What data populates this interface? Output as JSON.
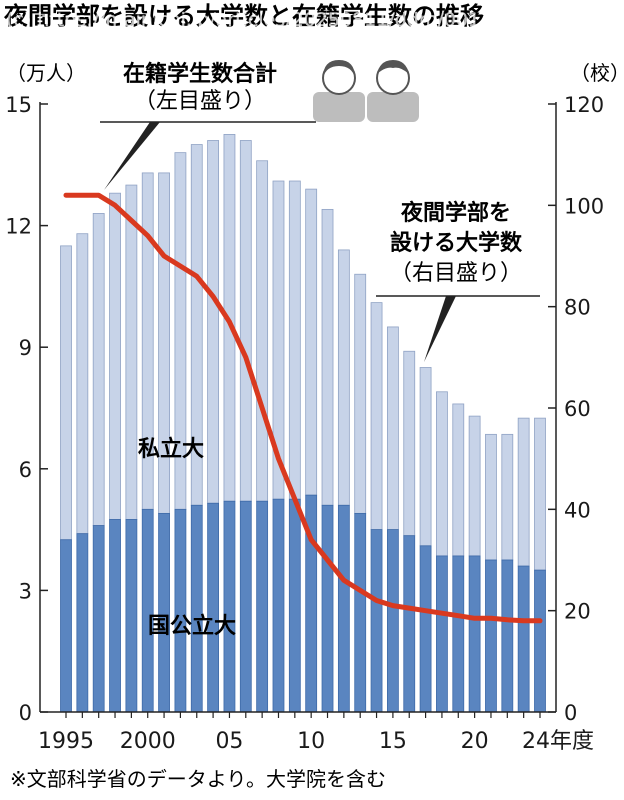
{
  "header": {
    "title": "夜間学部を設ける大学数と在籍学生数の推移",
    "watermark": "(c) https://mainichi.jp/articles/20250811/ddm/001/"
  },
  "footnote": "※文部科学省のデータより。大学院を含む",
  "chart_data": {
    "type": "bar",
    "subtype": "stacked-bar-with-line",
    "x": [
      1995,
      1996,
      1997,
      1998,
      1999,
      2000,
      2001,
      2002,
      2003,
      2004,
      2005,
      2006,
      2007,
      2008,
      2009,
      2010,
      2011,
      2012,
      2013,
      2014,
      2015,
      2016,
      2017,
      2018,
      2019,
      2020,
      2021,
      2022,
      2023,
      2024
    ],
    "x_tick_labels": [
      {
        "x": 1995,
        "label": "1995"
      },
      {
        "x": 2000,
        "label": "2000"
      },
      {
        "x": 2005,
        "label": "05"
      },
      {
        "x": 2010,
        "label": "10"
      },
      {
        "x": 2015,
        "label": "15"
      },
      {
        "x": 2020,
        "label": "20"
      },
      {
        "x": 2024,
        "label": "24年度"
      }
    ],
    "left_axis": {
      "unit_label": "（万人）",
      "range": [
        0,
        15
      ],
      "ticks": [
        0,
        3,
        6,
        9,
        12,
        15
      ]
    },
    "right_axis": {
      "unit_label": "（校）",
      "range": [
        0,
        120
      ],
      "ticks": [
        0,
        20,
        40,
        60,
        80,
        100,
        120
      ]
    },
    "series": [
      {
        "name": "国公立大",
        "kind": "bar-bottom",
        "axis": "left",
        "color": "#5a85c0",
        "values": [
          4.25,
          4.4,
          4.6,
          4.75,
          4.75,
          5.0,
          4.9,
          5.0,
          5.1,
          5.15,
          5.2,
          5.2,
          5.2,
          5.25,
          5.25,
          5.35,
          5.1,
          5.1,
          4.9,
          4.5,
          4.5,
          4.35,
          4.1,
          3.85,
          3.85,
          3.85,
          3.75,
          3.75,
          3.6,
          3.5
        ]
      },
      {
        "name": "私立大",
        "kind": "bar-top",
        "axis": "left",
        "color": "#c7d3e8",
        "totals": [
          11.5,
          11.8,
          12.3,
          12.8,
          13.0,
          13.3,
          13.3,
          13.8,
          14.0,
          14.1,
          14.25,
          14.1,
          13.6,
          13.1,
          13.1,
          12.9,
          12.4,
          11.4,
          10.8,
          10.1,
          9.5,
          8.9,
          8.5,
          7.9,
          7.6,
          7.3,
          6.85,
          6.85,
          7.25,
          7.25
        ]
      },
      {
        "name": "夜間学部を設ける大学数",
        "kind": "line",
        "axis": "right",
        "color": "#d9391f",
        "values": [
          102,
          102,
          102,
          100,
          97,
          94,
          90,
          88,
          86,
          82,
          77,
          70,
          60,
          50,
          42,
          34,
          30,
          26,
          24,
          22,
          21,
          20.5,
          20,
          19.5,
          19,
          18.5,
          18.5,
          18.2,
          18,
          18
        ]
      }
    ],
    "callouts": {
      "total": {
        "line1": "在籍学生数合計",
        "line2": "（左目盛り）"
      },
      "line": {
        "line1": "夜間学部を",
        "line2": "設ける大学数",
        "line3": "（右目盛り）"
      }
    },
    "bar_labels": {
      "private": "私立大",
      "public": "国公立大"
    },
    "grid": false
  }
}
